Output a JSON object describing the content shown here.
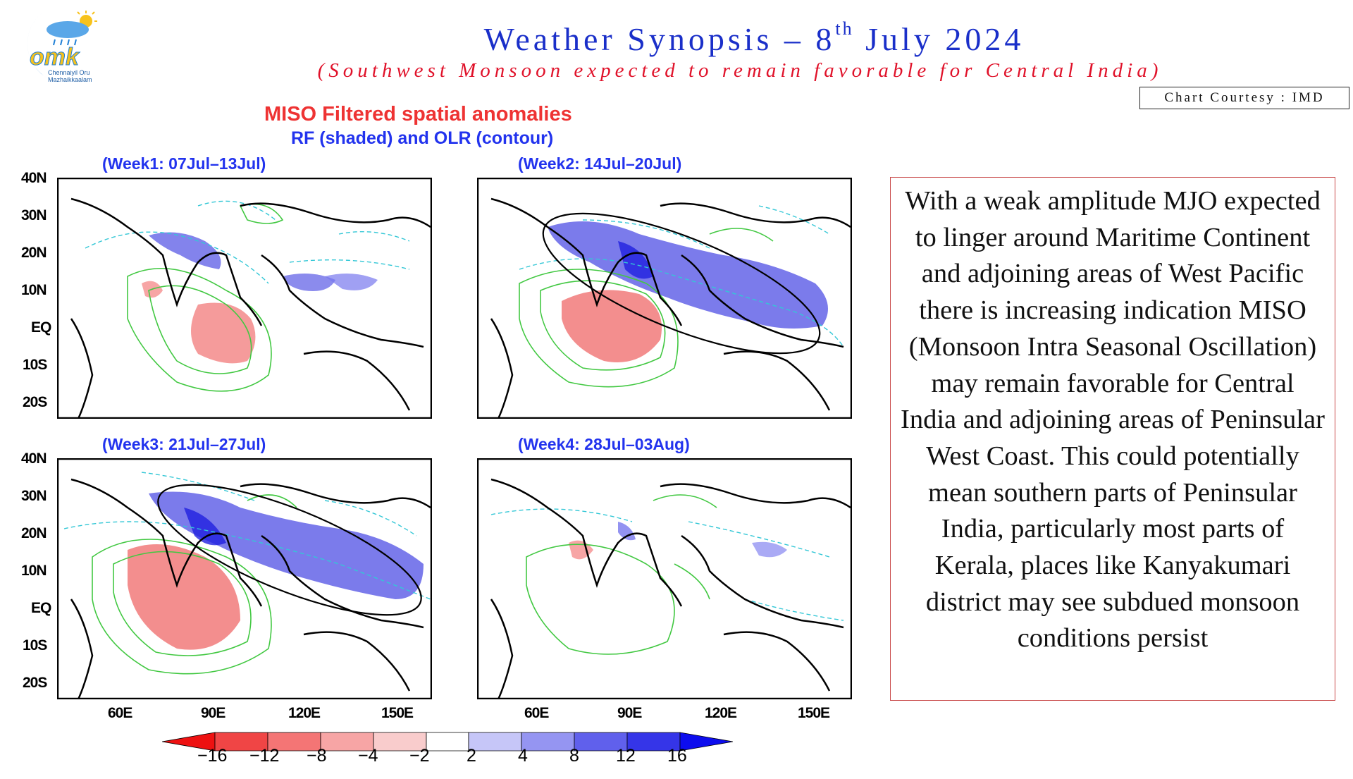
{
  "logo": {
    "text": "omk",
    "caption_line1": "Chennaiyil Oru",
    "caption_line2": "Mazhaikkaalam"
  },
  "header": {
    "title_before": "Weather Synopsis – 8",
    "title_sup": "th",
    "title_after": " July 2024",
    "subtitle": "(Southwest Monsoon expected to remain favorable for Central India)",
    "courtesy": "Chart Courtesy : IMD"
  },
  "figure": {
    "title": "MISO Filtered spatial anomalies",
    "subtitle": "RF (shaded) and OLR (contour)",
    "panels": [
      {
        "label": "(Week1: 07Jul–13Jul)"
      },
      {
        "label": "(Week2: 14Jul–20Jul)"
      },
      {
        "label": "(Week3: 21Jul–27Jul)"
      },
      {
        "label": "(Week4: 28Jul–03Aug)"
      }
    ],
    "lat_ticks": [
      "40N",
      "30N",
      "20N",
      "10N",
      "EQ",
      "10S",
      "20S"
    ],
    "lon_ticks": [
      "60E",
      "90E",
      "120E",
      "150E"
    ],
    "colorbar": {
      "ticks": [
        "−16",
        "−12",
        "−8",
        "−4",
        "−2",
        "2",
        "4",
        "8",
        "12",
        "16"
      ],
      "colors": [
        "#ee1111",
        "#f04545",
        "#f47575",
        "#f7a5a5",
        "#f9cccc",
        "#ffffff",
        "#c6c6f8",
        "#9595f2",
        "#6060ec",
        "#3535e8",
        "#0d0dee"
      ]
    },
    "colors": {
      "rf_positive": "#5a5ae6",
      "rf_negative": "#f17a7a",
      "olr_positive": "#42c842",
      "olr_negative": "#33c7d6",
      "ellipse": "#000000"
    }
  },
  "description": "With a weak amplitude MJO expected to linger around Maritime Continent and adjoining areas of West Pacific there is increasing indication MISO (Monsoon Intra Seasonal Oscillation) may remain favorable for Central India and adjoining areas of Peninsular West Coast. This could potentially mean southern parts of Peninsular India, particularly most parts of Kerala, places like Kanyakumari district may see subdued monsoon conditions persist"
}
